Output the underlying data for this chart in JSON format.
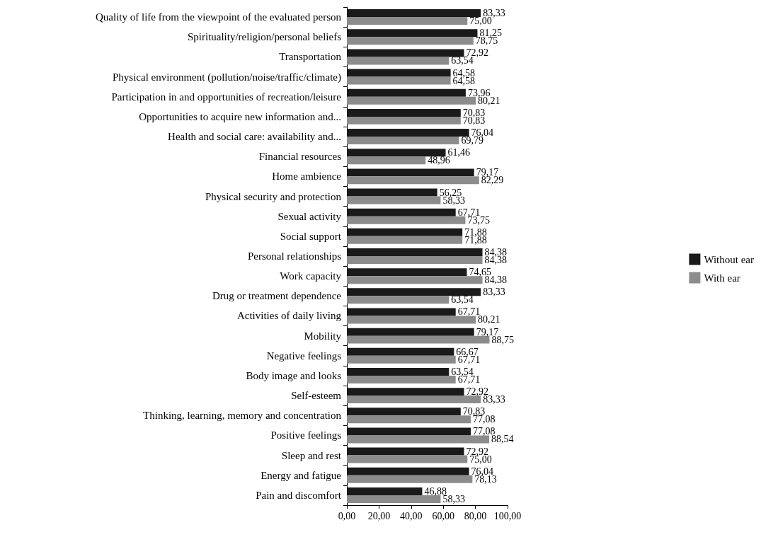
{
  "chart_data": {
    "type": "bar",
    "orientation": "horizontal",
    "categories": [
      "Quality of life from the viewpoint of the evaluated person",
      "Spirituality/religion/personal beliefs",
      "Transportation",
      "Physical environment (pollution/noise/traffic/climate)",
      "Participation in and opportunities of recreation/leisure",
      "Opportunities to acquire new information and...",
      "Health and social care: availability and...",
      "Financial resources",
      "Home ambience",
      "Physical security and protection",
      "Sexual activity",
      "Social support",
      "Personal relationships",
      "Work capacity",
      "Drug or treatment dependence",
      "Activities of daily living",
      "Mobility",
      "Negative feelings",
      "Body image and looks",
      "Self-esteem",
      "Thinking, learning, memory and concentration",
      "Positive feelings",
      "Sleep and rest",
      "Energy and fatigue",
      "Pain and discomfort"
    ],
    "series": [
      {
        "name": "Without ear",
        "color": "#1a1a1a",
        "values": [
          83.33,
          81.25,
          72.92,
          64.58,
          73.96,
          70.83,
          76.04,
          61.46,
          79.17,
          56.25,
          67.71,
          71.88,
          84.38,
          74.65,
          83.33,
          67.71,
          79.17,
          66.67,
          63.54,
          72.92,
          70.83,
          77.08,
          72.92,
          76.04,
          46.88
        ],
        "value_labels": [
          "83,33",
          "81,25",
          "72,92",
          "64,58",
          "73,96",
          "70,83",
          "76,04",
          "61,46",
          "79,17",
          "56,25",
          "67,71",
          "71,88",
          "84,38",
          "74,65",
          "83,33",
          "67,71",
          "79,17",
          "66,67",
          "63,54",
          "72,92",
          "70,83",
          "77,08",
          "72,92",
          "76,04",
          "46,88"
        ]
      },
      {
        "name": "With ear",
        "color": "#8c8c8c",
        "values": [
          75.0,
          78.75,
          63.54,
          64.58,
          80.21,
          70.83,
          69.79,
          48.96,
          82.29,
          58.33,
          73.75,
          71.88,
          84.38,
          84.38,
          63.54,
          80.21,
          88.75,
          67.71,
          67.71,
          83.33,
          77.08,
          88.54,
          75.0,
          78.13,
          58.33
        ],
        "value_labels": [
          "75,00",
          "78,75",
          "63,54",
          "64,58",
          "80,21",
          "70,83",
          "69,79",
          "48,96",
          "82,29",
          "58,33",
          "73,75",
          "71,88",
          "84,38",
          "84,38",
          "63,54",
          "80,21",
          "88,75",
          "67,71",
          "67,71",
          "83,33",
          "77,08",
          "88,54",
          "75,00",
          "78,13",
          "58,33"
        ]
      }
    ],
    "xlim": [
      0,
      100
    ],
    "xticks": [
      {
        "value": 0,
        "label": "0,00"
      },
      {
        "value": 20,
        "label": "20,00"
      },
      {
        "value": 40,
        "label": "40,00"
      },
      {
        "value": 60,
        "label": "60,00"
      },
      {
        "value": 80,
        "label": "80,00"
      },
      {
        "value": 100,
        "label": "100,00"
      }
    ],
    "grid": false,
    "legend": "right"
  }
}
